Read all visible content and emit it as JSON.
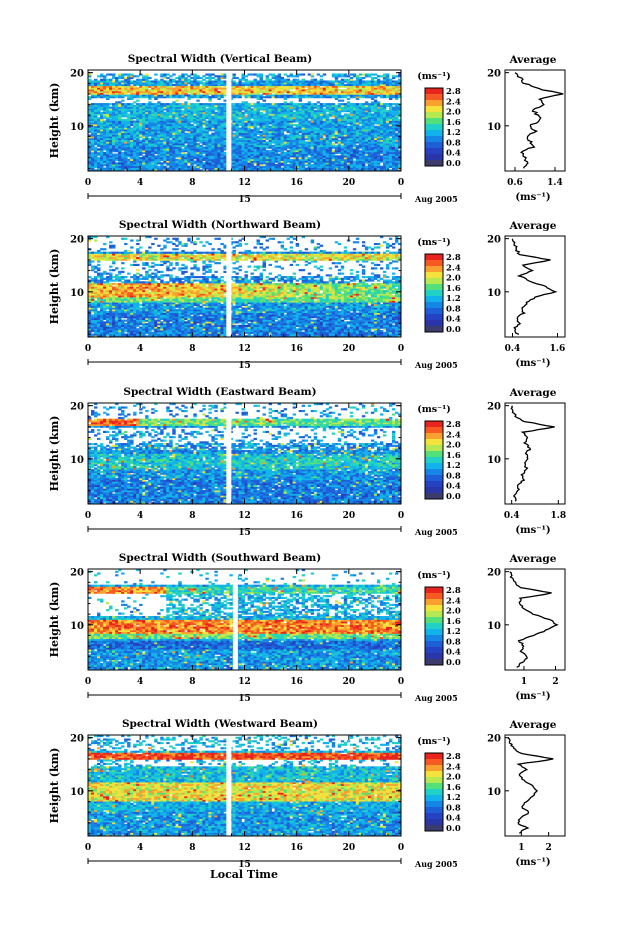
{
  "figure": {
    "xlabel": "Local Time"
  },
  "colorbar": {
    "unit": "(ms⁻¹)",
    "ticks": [
      "2.8",
      "2.4",
      "2.0",
      "1.6",
      "1.2",
      "0.8",
      "0.4",
      "0.0"
    ],
    "colors": [
      "#e8241e",
      "#f65a22",
      "#f9a02f",
      "#f4e23d",
      "#b6e852",
      "#53e07a",
      "#1fd1c6",
      "#12b2ea",
      "#1686e6",
      "#1e5fd8",
      "#2542c2",
      "#2a36a8",
      "#3b3b6e"
    ]
  },
  "chart_data": [
    {
      "type": "heatmap",
      "title": "Spectral Width (Vertical Beam)",
      "ylabel": "Height (km)",
      "x_ticks": [
        "0",
        "4",
        "8",
        "12",
        "16",
        "20",
        "0"
      ],
      "date_label": "15",
      "date_suffix": "Aug 2005",
      "y_ticks": [
        "20",
        "10"
      ],
      "xlim": [
        0,
        24
      ],
      "ylim": [
        1.5,
        20.5
      ],
      "gap_hour": 10.8,
      "profile": {
        "title": "Average",
        "xlabel": "(ms⁻¹)",
        "x_ticks": [
          "0.6",
          "1.4"
        ],
        "y_ticks": [
          "20",
          "10"
        ],
        "xlim": [
          0.4,
          1.6
        ],
        "heights": [
          2,
          3,
          4,
          5,
          6,
          7,
          8,
          9,
          10,
          11,
          12,
          13,
          14,
          15,
          16,
          17,
          18,
          19,
          20
        ],
        "values": [
          0.75,
          0.85,
          0.8,
          0.72,
          0.95,
          0.9,
          0.85,
          1.0,
          0.9,
          1.1,
          1.05,
          0.95,
          1.2,
          1.1,
          1.55,
          1.05,
          0.8,
          0.7,
          0.6
        ]
      }
    },
    {
      "type": "heatmap",
      "title": "Spectral Width (Northward Beam)",
      "ylabel": "Height (km)",
      "x_ticks": [
        "0",
        "4",
        "8",
        "12",
        "16",
        "20",
        "0"
      ],
      "date_label": "15",
      "date_suffix": "Aug 2005",
      "y_ticks": [
        "20",
        "10"
      ],
      "xlim": [
        0,
        24
      ],
      "ylim": [
        1.5,
        20.5
      ],
      "gap_hour": 10.8,
      "profile": {
        "title": "Average",
        "xlabel": "(ms⁻¹)",
        "x_ticks": [
          "0.4",
          "1.6"
        ],
        "y_ticks": [
          "20",
          "10"
        ],
        "xlim": [
          0.2,
          1.8
        ],
        "heights": [
          2,
          3,
          4,
          5,
          6,
          7,
          8,
          9,
          10,
          11,
          12,
          13,
          14,
          15,
          16,
          17,
          18,
          19,
          20
        ],
        "values": [
          0.55,
          0.45,
          0.6,
          0.5,
          0.7,
          0.65,
          0.8,
          1.0,
          1.55,
          1.3,
          0.85,
          0.6,
          0.9,
          0.7,
          1.4,
          0.6,
          0.5,
          0.45,
          0.4
        ]
      }
    },
    {
      "type": "heatmap",
      "title": "Spectral Width (Eastward Beam)",
      "ylabel": "Height (km)",
      "x_ticks": [
        "0",
        "4",
        "8",
        "12",
        "16",
        "20",
        "0"
      ],
      "date_label": "15",
      "date_suffix": "Aug 2005",
      "y_ticks": [
        "20",
        "10"
      ],
      "xlim": [
        0,
        24
      ],
      "ylim": [
        1.5,
        20.5
      ],
      "gap_hour": 10.8,
      "profile": {
        "title": "Average",
        "xlabel": "(ms⁻¹)",
        "x_ticks": [
          "0.4",
          "1.8"
        ],
        "y_ticks": [
          "20",
          "10"
        ],
        "xlim": [
          0.2,
          2.0
        ],
        "heights": [
          2,
          3,
          4,
          5,
          6,
          7,
          8,
          9,
          10,
          11,
          12,
          13,
          14,
          15,
          16,
          17,
          18,
          19,
          20
        ],
        "values": [
          0.55,
          0.5,
          0.6,
          0.55,
          0.75,
          0.7,
          0.85,
          0.8,
          0.9,
          0.85,
          0.95,
          0.8,
          0.9,
          0.75,
          1.7,
          0.8,
          0.5,
          0.45,
          0.4
        ]
      }
    },
    {
      "type": "heatmap",
      "title": "Spectral Width (Southward Beam)",
      "ylabel": "Height (km)",
      "x_ticks": [
        "0",
        "4",
        "8",
        "12",
        "16",
        "20",
        "0"
      ],
      "date_label": "15",
      "date_suffix": "Aug 2005",
      "y_ticks": [
        "20",
        "10"
      ],
      "xlim": [
        0,
        24
      ],
      "ylim": [
        1.5,
        20.5
      ],
      "gap_hour": 11.3,
      "profile": {
        "title": "Average",
        "xlabel": "(ms⁻¹)",
        "x_ticks": [
          "1",
          "2"
        ],
        "y_ticks": [
          "20",
          "10"
        ],
        "xlim": [
          0.4,
          2.3
        ],
        "heights": [
          2,
          3,
          4,
          5,
          6,
          7,
          8,
          9,
          10,
          11,
          12,
          13,
          14,
          15,
          16,
          17,
          18,
          19,
          20
        ],
        "values": [
          0.8,
          0.95,
          1.1,
          0.9,
          1.0,
          0.85,
          1.3,
          1.7,
          2.05,
          1.8,
          1.3,
          1.0,
          0.85,
          0.9,
          1.9,
          0.9,
          0.7,
          0.6,
          0.55
        ]
      }
    },
    {
      "type": "heatmap",
      "title": "Spectral Width (Westward Beam)",
      "ylabel": "Height (km)",
      "x_ticks": [
        "0",
        "4",
        "8",
        "12",
        "16",
        "20",
        "0"
      ],
      "date_label": "15",
      "date_suffix": "Aug 2005",
      "y_ticks": [
        "20",
        "10"
      ],
      "xlim": [
        0,
        24
      ],
      "ylim": [
        1.5,
        20.5
      ],
      "gap_hour": 10.8,
      "profile": {
        "title": "Average",
        "xlabel": "(ms⁻¹)",
        "x_ticks": [
          "1",
          "2"
        ],
        "y_ticks": [
          "20",
          "10"
        ],
        "xlim": [
          0.4,
          2.6
        ],
        "heights": [
          2,
          3,
          4,
          5,
          6,
          7,
          8,
          9,
          10,
          11,
          12,
          13,
          14,
          15,
          16,
          17,
          18,
          19,
          20
        ],
        "values": [
          0.9,
          1.2,
          0.85,
          1.0,
          1.3,
          1.0,
          1.2,
          1.4,
          1.6,
          1.4,
          1.1,
          0.9,
          1.2,
          0.9,
          2.2,
          1.0,
          0.7,
          0.6,
          0.5
        ]
      }
    }
  ]
}
